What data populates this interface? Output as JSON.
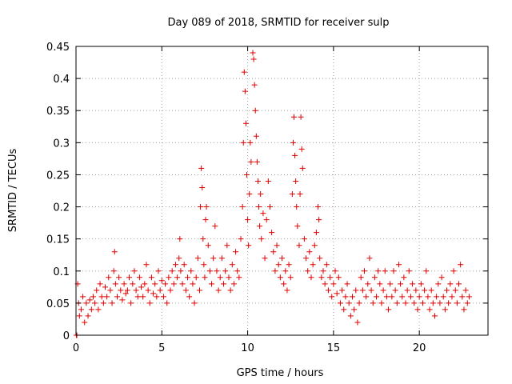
{
  "chart_data": {
    "type": "scatter",
    "title": "Day 089 of 2018, SRMTID for receiver sulp",
    "xlabel": "GPS time / hours",
    "ylabel": "SRMTID / TECUs",
    "xlim": [
      0,
      24
    ],
    "ylim": [
      0,
      0.45
    ],
    "xticks": [
      0,
      5,
      10,
      15,
      20
    ],
    "xtick_labels": [
      "0",
      "5",
      "10",
      "15",
      "20"
    ],
    "yticks": [
      0,
      0.05,
      0.1,
      0.15,
      0.2,
      0.25,
      0.3,
      0.35,
      0.4,
      0.45
    ],
    "ytick_labels": [
      "0",
      "0.05",
      "0.1",
      "0.15",
      "0.2",
      "0.25",
      "0.3",
      "0.35",
      "0.4",
      "0.45"
    ],
    "grid": true,
    "marker": "plus",
    "color": "#e00000",
    "series": [
      {
        "name": "SRMTID",
        "points": [
          [
            0.02,
            0.0
          ],
          [
            0.05,
            0.0
          ],
          [
            0.1,
            0.08
          ],
          [
            0.15,
            0.05
          ],
          [
            0.2,
            0.03
          ],
          [
            0.3,
            0.04
          ],
          [
            0.4,
            0.06
          ],
          [
            0.5,
            0.02
          ],
          [
            0.6,
            0.05
          ],
          [
            0.7,
            0.03
          ],
          [
            0.8,
            0.055
          ],
          [
            0.9,
            0.04
          ],
          [
            1.0,
            0.06
          ],
          [
            1.1,
            0.05
          ],
          [
            1.2,
            0.07
          ],
          [
            1.3,
            0.04
          ],
          [
            1.4,
            0.08
          ],
          [
            1.5,
            0.06
          ],
          [
            1.6,
            0.05
          ],
          [
            1.7,
            0.075
          ],
          [
            1.8,
            0.06
          ],
          [
            1.9,
            0.09
          ],
          [
            2.0,
            0.07
          ],
          [
            2.1,
            0.05
          ],
          [
            2.2,
            0.1
          ],
          [
            2.25,
            0.13
          ],
          [
            2.3,
            0.08
          ],
          [
            2.4,
            0.06
          ],
          [
            2.5,
            0.09
          ],
          [
            2.6,
            0.07
          ],
          [
            2.7,
            0.055
          ],
          [
            2.8,
            0.08
          ],
          [
            2.9,
            0.065
          ],
          [
            3.0,
            0.07
          ],
          [
            3.1,
            0.09
          ],
          [
            3.2,
            0.05
          ],
          [
            3.3,
            0.08
          ],
          [
            3.4,
            0.1
          ],
          [
            3.5,
            0.07
          ],
          [
            3.6,
            0.06
          ],
          [
            3.7,
            0.09
          ],
          [
            3.8,
            0.075
          ],
          [
            3.9,
            0.06
          ],
          [
            4.0,
            0.08
          ],
          [
            4.1,
            0.11
          ],
          [
            4.2,
            0.07
          ],
          [
            4.3,
            0.05
          ],
          [
            4.4,
            0.09
          ],
          [
            4.5,
            0.065
          ],
          [
            4.6,
            0.08
          ],
          [
            4.7,
            0.06
          ],
          [
            4.8,
            0.1
          ],
          [
            4.9,
            0.07
          ],
          [
            5.0,
            0.085
          ],
          [
            5.1,
            0.06
          ],
          [
            5.2,
            0.08
          ],
          [
            5.3,
            0.05
          ],
          [
            5.4,
            0.09
          ],
          [
            5.5,
            0.07
          ],
          [
            5.6,
            0.1
          ],
          [
            5.7,
            0.08
          ],
          [
            5.8,
            0.11
          ],
          [
            5.9,
            0.09
          ],
          [
            6.0,
            0.12
          ],
          [
            6.05,
            0.15
          ],
          [
            6.1,
            0.1
          ],
          [
            6.2,
            0.08
          ],
          [
            6.3,
            0.11
          ],
          [
            6.4,
            0.07
          ],
          [
            6.5,
            0.09
          ],
          [
            6.6,
            0.06
          ],
          [
            6.7,
            0.1
          ],
          [
            6.8,
            0.08
          ],
          [
            6.9,
            0.05
          ],
          [
            7.0,
            0.09
          ],
          [
            7.1,
            0.12
          ],
          [
            7.2,
            0.07
          ],
          [
            7.25,
            0.2
          ],
          [
            7.3,
            0.26
          ],
          [
            7.35,
            0.23
          ],
          [
            7.4,
            0.15
          ],
          [
            7.45,
            0.11
          ],
          [
            7.5,
            0.09
          ],
          [
            7.55,
            0.18
          ],
          [
            7.6,
            0.2
          ],
          [
            7.7,
            0.14
          ],
          [
            7.8,
            0.1
          ],
          [
            7.9,
            0.08
          ],
          [
            8.0,
            0.12
          ],
          [
            8.1,
            0.17
          ],
          [
            8.2,
            0.1
          ],
          [
            8.3,
            0.07
          ],
          [
            8.4,
            0.09
          ],
          [
            8.5,
            0.12
          ],
          [
            8.6,
            0.08
          ],
          [
            8.7,
            0.1
          ],
          [
            8.8,
            0.14
          ],
          [
            8.9,
            0.09
          ],
          [
            9.0,
            0.07
          ],
          [
            9.1,
            0.11
          ],
          [
            9.2,
            0.08
          ],
          [
            9.3,
            0.13
          ],
          [
            9.4,
            0.1
          ],
          [
            9.5,
            0.09
          ],
          [
            9.6,
            0.15
          ],
          [
            9.7,
            0.2
          ],
          [
            9.75,
            0.3
          ],
          [
            9.8,
            0.41
          ],
          [
            9.85,
            0.38
          ],
          [
            9.9,
            0.33
          ],
          [
            9.95,
            0.25
          ],
          [
            10.0,
            0.18
          ],
          [
            10.05,
            0.14
          ],
          [
            10.1,
            0.22
          ],
          [
            10.15,
            0.3
          ],
          [
            10.2,
            0.27
          ],
          [
            10.3,
            0.44
          ],
          [
            10.35,
            0.43
          ],
          [
            10.4,
            0.39
          ],
          [
            10.45,
            0.35
          ],
          [
            10.5,
            0.31
          ],
          [
            10.55,
            0.27
          ],
          [
            10.6,
            0.24
          ],
          [
            10.65,
            0.2
          ],
          [
            10.7,
            0.17
          ],
          [
            10.75,
            0.22
          ],
          [
            10.8,
            0.15
          ],
          [
            10.9,
            0.19
          ],
          [
            11.0,
            0.12
          ],
          [
            11.1,
            0.18
          ],
          [
            11.2,
            0.24
          ],
          [
            11.3,
            0.2
          ],
          [
            11.4,
            0.16
          ],
          [
            11.5,
            0.13
          ],
          [
            11.6,
            0.1
          ],
          [
            11.7,
            0.14
          ],
          [
            11.8,
            0.11
          ],
          [
            11.9,
            0.09
          ],
          [
            12.0,
            0.12
          ],
          [
            12.1,
            0.08
          ],
          [
            12.2,
            0.1
          ],
          [
            12.3,
            0.07
          ],
          [
            12.4,
            0.11
          ],
          [
            12.5,
            0.09
          ],
          [
            12.6,
            0.22
          ],
          [
            12.65,
            0.3
          ],
          [
            12.7,
            0.34
          ],
          [
            12.75,
            0.28
          ],
          [
            12.8,
            0.24
          ],
          [
            12.85,
            0.2
          ],
          [
            12.9,
            0.17
          ],
          [
            13.0,
            0.14
          ],
          [
            13.05,
            0.22
          ],
          [
            13.1,
            0.34
          ],
          [
            13.15,
            0.29
          ],
          [
            13.2,
            0.26
          ],
          [
            13.3,
            0.15
          ],
          [
            13.4,
            0.12
          ],
          [
            13.5,
            0.1
          ],
          [
            13.6,
            0.13
          ],
          [
            13.7,
            0.09
          ],
          [
            13.8,
            0.11
          ],
          [
            13.9,
            0.14
          ],
          [
            14.0,
            0.16
          ],
          [
            14.1,
            0.2
          ],
          [
            14.15,
            0.18
          ],
          [
            14.2,
            0.12
          ],
          [
            14.3,
            0.09
          ],
          [
            14.4,
            0.1
          ],
          [
            14.5,
            0.08
          ],
          [
            14.6,
            0.11
          ],
          [
            14.7,
            0.07
          ],
          [
            14.8,
            0.09
          ],
          [
            14.9,
            0.06
          ],
          [
            15.0,
            0.08
          ],
          [
            15.1,
            0.1
          ],
          [
            15.2,
            0.065
          ],
          [
            15.3,
            0.09
          ],
          [
            15.4,
            0.05
          ],
          [
            15.5,
            0.07
          ],
          [
            15.6,
            0.04
          ],
          [
            15.7,
            0.06
          ],
          [
            15.8,
            0.08
          ],
          [
            15.9,
            0.05
          ],
          [
            16.0,
            0.03
          ],
          [
            16.1,
            0.06
          ],
          [
            16.2,
            0.04
          ],
          [
            16.3,
            0.07
          ],
          [
            16.4,
            0.02
          ],
          [
            16.5,
            0.05
          ],
          [
            16.6,
            0.09
          ],
          [
            16.7,
            0.07
          ],
          [
            16.8,
            0.1
          ],
          [
            16.9,
            0.06
          ],
          [
            17.0,
            0.08
          ],
          [
            17.1,
            0.12
          ],
          [
            17.2,
            0.07
          ],
          [
            17.3,
            0.05
          ],
          [
            17.4,
            0.09
          ],
          [
            17.5,
            0.06
          ],
          [
            17.6,
            0.1
          ],
          [
            17.7,
            0.08
          ],
          [
            17.8,
            0.05
          ],
          [
            17.9,
            0.07
          ],
          [
            18.0,
            0.1
          ],
          [
            18.1,
            0.06
          ],
          [
            18.2,
            0.04
          ],
          [
            18.3,
            0.08
          ],
          [
            18.4,
            0.06
          ],
          [
            18.5,
            0.1
          ],
          [
            18.6,
            0.07
          ],
          [
            18.7,
            0.05
          ],
          [
            18.8,
            0.11
          ],
          [
            18.9,
            0.08
          ],
          [
            19.0,
            0.06
          ],
          [
            19.1,
            0.09
          ],
          [
            19.2,
            0.05
          ],
          [
            19.3,
            0.07
          ],
          [
            19.4,
            0.1
          ],
          [
            19.5,
            0.06
          ],
          [
            19.6,
            0.08
          ],
          [
            19.7,
            0.05
          ],
          [
            19.8,
            0.07
          ],
          [
            19.9,
            0.04
          ],
          [
            20.0,
            0.06
          ],
          [
            20.1,
            0.08
          ],
          [
            20.2,
            0.05
          ],
          [
            20.3,
            0.07
          ],
          [
            20.4,
            0.1
          ],
          [
            20.5,
            0.06
          ],
          [
            20.6,
            0.04
          ],
          [
            20.7,
            0.07
          ],
          [
            20.8,
            0.05
          ],
          [
            20.9,
            0.03
          ],
          [
            21.0,
            0.06
          ],
          [
            21.1,
            0.08
          ],
          [
            21.2,
            0.05
          ],
          [
            21.3,
            0.09
          ],
          [
            21.4,
            0.06
          ],
          [
            21.5,
            0.04
          ],
          [
            21.6,
            0.07
          ],
          [
            21.7,
            0.05
          ],
          [
            21.8,
            0.08
          ],
          [
            21.9,
            0.06
          ],
          [
            22.0,
            0.1
          ],
          [
            22.1,
            0.07
          ],
          [
            22.2,
            0.05
          ],
          [
            22.3,
            0.08
          ],
          [
            22.4,
            0.11
          ],
          [
            22.5,
            0.06
          ],
          [
            22.6,
            0.04
          ],
          [
            22.7,
            0.07
          ],
          [
            22.8,
            0.05
          ],
          [
            22.9,
            0.06
          ]
        ]
      }
    ]
  }
}
